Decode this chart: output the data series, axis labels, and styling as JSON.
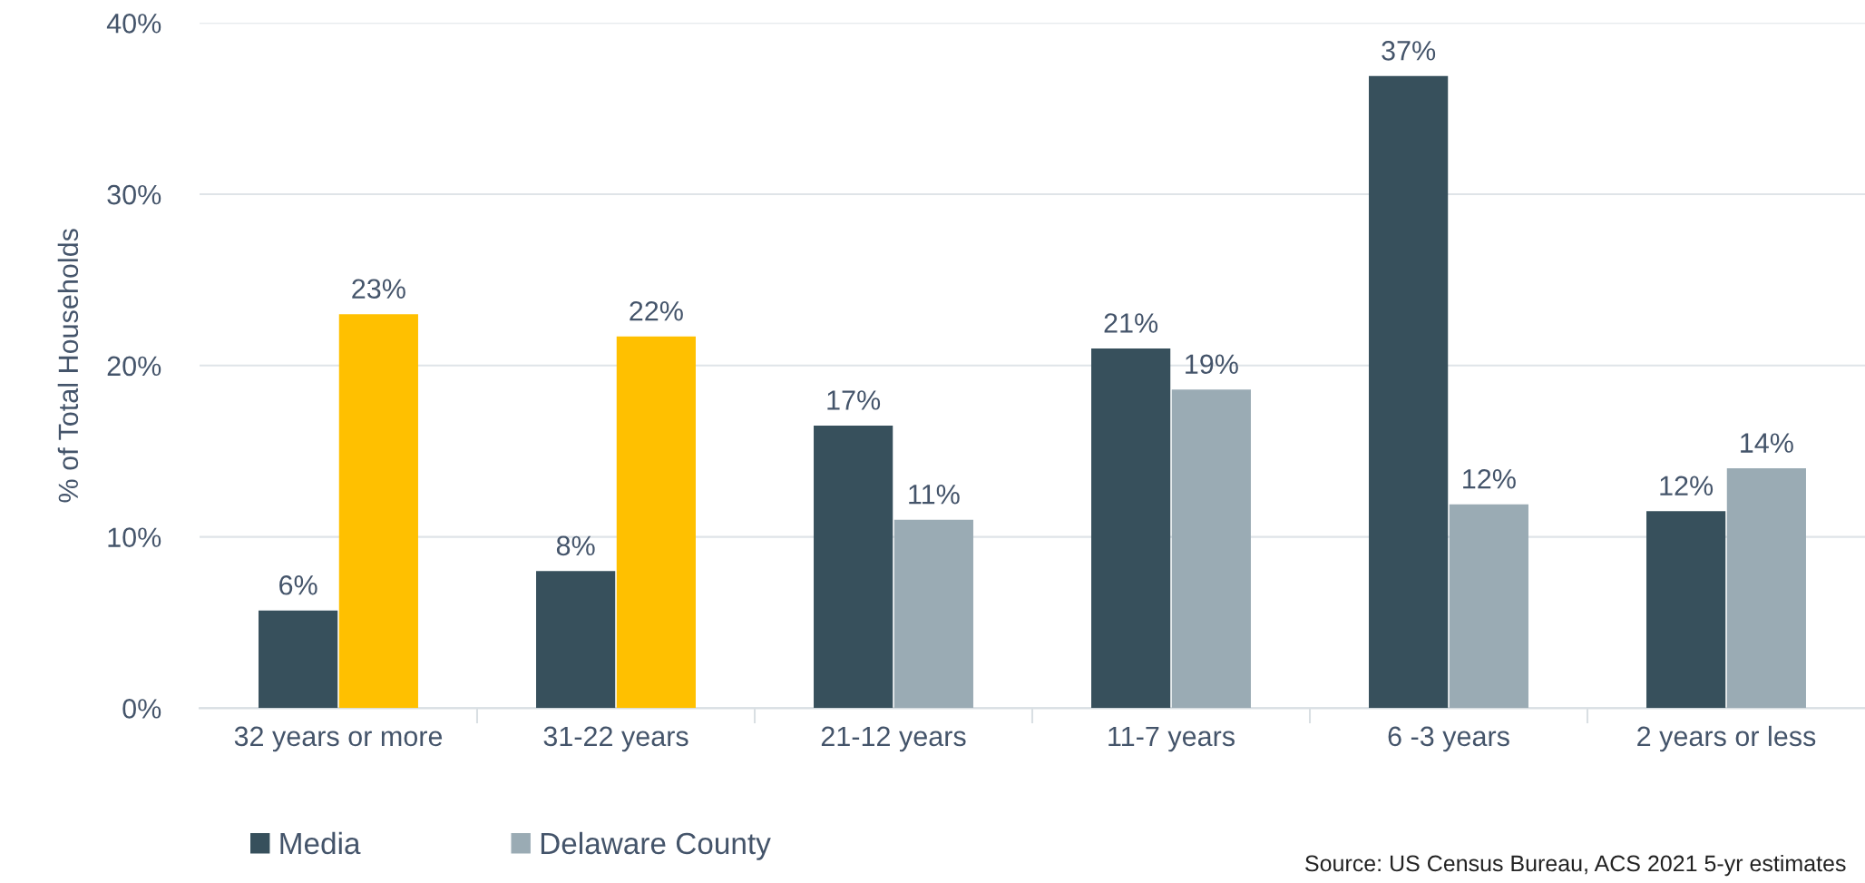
{
  "chart_data": {
    "type": "bar",
    "ylabel": "% of Total Households",
    "categories": [
      "32 years or more",
      "31-22 years",
      "21-12 years",
      "11-7 years",
      "6 -3 years",
      "2 years or less"
    ],
    "series": [
      {
        "name": "Media",
        "color": "#37505c",
        "values": [
          5.7,
          8.0,
          16.5,
          21.0,
          36.9,
          11.5
        ],
        "value_labels": [
          "6%",
          "8%",
          "17%",
          "21%",
          "37%",
          "12%"
        ]
      },
      {
        "name": "Delaware County",
        "color": "#9aabb4",
        "colors": [
          "#ffc000",
          "#ffc000",
          "#9aabb4",
          "#9aabb4",
          "#9aabb4",
          "#9aabb4"
        ],
        "values": [
          23.0,
          21.7,
          11.0,
          18.6,
          11.9,
          14.0
        ],
        "value_labels": [
          "23%",
          "22%",
          "11%",
          "19%",
          "12%",
          "14%"
        ]
      }
    ],
    "ylim": [
      0,
      40
    ],
    "yticks": [
      {
        "value": 0,
        "label": "0%"
      },
      {
        "value": 10,
        "label": "10%"
      },
      {
        "value": 20,
        "label": "20%"
      },
      {
        "value": 30,
        "label": "30%"
      },
      {
        "value": 40,
        "label": "40%"
      }
    ],
    "grid": "y",
    "legend": "bottom left",
    "annotations": [
      "Source: US Census Bureau, ACS 2021 5-yr estimates"
    ]
  }
}
